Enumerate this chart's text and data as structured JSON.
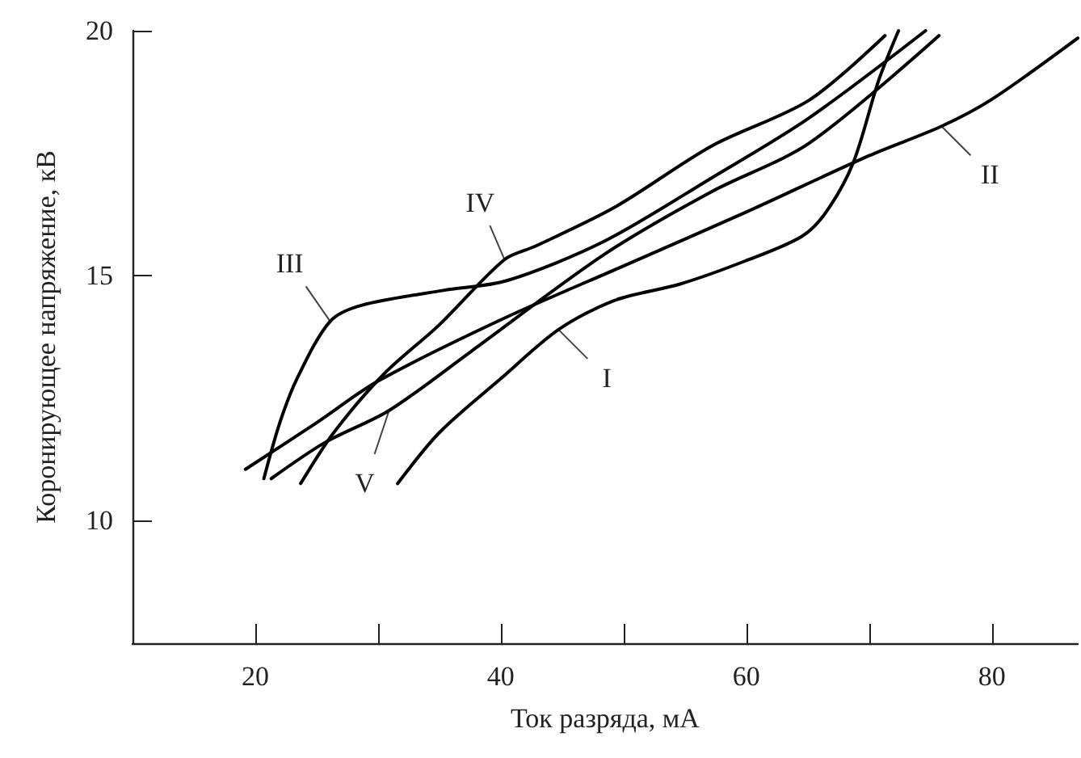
{
  "chart_data": {
    "type": "line",
    "xlabel": "Ток разряда, мА",
    "ylabel": "Коронирующее напряжение, кВ",
    "xlim": [
      10,
      87
    ],
    "ylim": [
      7.5,
      20
    ],
    "xticks": [
      20,
      {
        "value": 30,
        "label": null
      },
      40,
      {
        "value": 50,
        "label": null
      },
      60,
      {
        "value": 70,
        "label": null
      },
      80
    ],
    "yticks": [
      10,
      15,
      20
    ],
    "grid": false,
    "marker": "none",
    "line_style": "solid",
    "series": [
      {
        "color": "#000000",
        "x": [
          31.6,
          35,
          40,
          44.7,
          49.3,
          54.6,
          59.9,
          64.5,
          66.5,
          68.7,
          70.8,
          72.4
        ],
        "values": [
          10.76,
          11.8,
          12.9,
          13.9,
          14.5,
          14.83,
          15.3,
          15.8,
          16.3,
          17.3,
          19.0,
          20.0
        ]
      },
      {
        "color": "#000000",
        "x": [
          19.2,
          25,
          30,
          40,
          50,
          60,
          70,
          75.9,
          80,
          87
        ],
        "values": [
          11.05,
          12.0,
          12.85,
          14.1,
          15.2,
          16.3,
          17.45,
          18.05,
          18.6,
          19.85
        ]
      },
      {
        "color": "#000000",
        "x": [
          20.7,
          22,
          23.4,
          26.1,
          28.7,
          35.3,
          40.5,
          48.4,
          57.2,
          65,
          74.6
        ],
        "values": [
          10.86,
          12.0,
          12.9,
          14.07,
          14.4,
          14.7,
          14.9,
          15.7,
          17.0,
          18.2,
          20.0
        ]
      },
      {
        "color": "#000000",
        "x": [
          23.7,
          26.4,
          30.5,
          35,
          40.3,
          42.8,
          49.3,
          57.2,
          65.1,
          71.3
        ],
        "values": [
          10.76,
          11.8,
          13.0,
          14.0,
          15.33,
          15.6,
          16.4,
          17.65,
          18.58,
          19.9
        ]
      },
      {
        "color": "#000000",
        "x": [
          21.3,
          25.7,
          30.9,
          37.5,
          48.4,
          57.2,
          65.1,
          75.7
        ],
        "values": [
          10.86,
          11.6,
          12.25,
          13.44,
          15.43,
          16.72,
          17.7,
          19.9
        ]
      }
    ],
    "annotations": [
      {
        "text": "I",
        "x": 44.7,
        "y": 13.9
      },
      {
        "text": "II",
        "x": 75.9,
        "y": 18.05
      },
      {
        "text": "III",
        "x": 26.1,
        "y": 14.07
      },
      {
        "text": "IV",
        "x": 40.3,
        "y": 15.33
      },
      {
        "text": "V",
        "x": 30.9,
        "y": 12.25
      }
    ]
  }
}
